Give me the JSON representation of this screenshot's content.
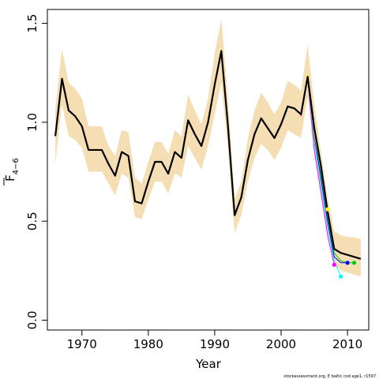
{
  "chart_data": {
    "type": "line",
    "xlabel": "Year",
    "ylabel": "F",
    "ylabel_subscript": "4−6",
    "credit": "stockassessment.org, E baltic cod age1, r1597",
    "xlim": [
      1964.8,
      2013.2
    ],
    "ylim": [
      -0.05,
      1.57
    ],
    "x_ticks": [
      1970,
      1980,
      1990,
      2000,
      2010
    ],
    "y_ticks": [
      0.0,
      0.5,
      1.0,
      1.5
    ],
    "y_tick_labels": [
      "0.0",
      "0.5",
      "1.0",
      "1.5"
    ],
    "colors": {
      "band": "#f5deb3",
      "main": "#000000",
      "retro": [
        "#ff00ff",
        "#0000ff",
        "#00ffff",
        "#00ff00",
        "#ffff00",
        "#00cd00"
      ]
    },
    "confidence_band": {
      "x": [
        1966,
        1967,
        1968,
        1969,
        1970,
        1971,
        1972,
        1973,
        1974,
        1975,
        1976,
        1977,
        1978,
        1979,
        1980,
        1981,
        1982,
        1983,
        1984,
        1985,
        1986,
        1987,
        1988,
        1989,
        1990,
        1991,
        1992,
        1993,
        1994,
        1995,
        1996,
        1997,
        1998,
        1999,
        2000,
        2001,
        2002,
        2003,
        2004,
        2005,
        2006,
        2007,
        2008,
        2009,
        2010,
        2011,
        2012
      ],
      "lower": [
        0.79,
        1.09,
        0.93,
        0.91,
        0.87,
        0.75,
        0.75,
        0.75,
        0.69,
        0.63,
        0.74,
        0.72,
        0.52,
        0.51,
        0.61,
        0.7,
        0.7,
        0.64,
        0.74,
        0.72,
        0.88,
        0.82,
        0.76,
        0.88,
        1.04,
        1.2,
        0.86,
        0.44,
        0.53,
        0.7,
        0.82,
        0.89,
        0.86,
        0.81,
        0.87,
        0.96,
        0.94,
        0.92,
        1.13,
        0.84,
        0.63,
        0.43,
        0.28,
        0.25,
        0.24,
        0.23,
        0.22
      ],
      "upper": [
        1.07,
        1.37,
        1.2,
        1.17,
        1.12,
        0.98,
        0.98,
        0.98,
        0.88,
        0.83,
        0.96,
        0.95,
        0.72,
        0.69,
        0.8,
        0.9,
        0.9,
        0.84,
        0.96,
        0.93,
        1.14,
        1.06,
        0.99,
        1.12,
        1.35,
        1.52,
        1.12,
        0.61,
        0.7,
        0.92,
        1.06,
        1.15,
        1.1,
        1.04,
        1.1,
        1.21,
        1.19,
        1.16,
        1.39,
        1.09,
        0.85,
        0.62,
        0.45,
        0.43,
        0.42,
        0.42,
        0.41
      ]
    },
    "series": [
      {
        "x": [
          1966,
          1967,
          1968,
          1969,
          1970,
          1971,
          1972,
          1973,
          1974,
          1975,
          1976,
          1977,
          1978,
          1979,
          1980,
          1981,
          1982,
          1983,
          1984,
          1985,
          1986,
          1987,
          1988,
          1989,
          1990,
          1991,
          1992,
          1993,
          1994,
          1995,
          1996,
          1997,
          1998,
          1999,
          2000,
          2001,
          2002,
          2003,
          2004,
          2005,
          2006,
          2007,
          2008,
          2009,
          2010,
          2011,
          2012
        ],
        "values": [
          0.93,
          1.22,
          1.06,
          1.03,
          0.98,
          0.86,
          0.86,
          0.86,
          0.79,
          0.73,
          0.85,
          0.83,
          0.6,
          0.59,
          0.7,
          0.8,
          0.8,
          0.74,
          0.85,
          0.82,
          1.01,
          0.94,
          0.88,
          1.0,
          1.19,
          1.36,
          0.98,
          0.53,
          0.62,
          0.81,
          0.94,
          1.02,
          0.97,
          0.92,
          0.99,
          1.08,
          1.07,
          1.04,
          1.23,
          0.97,
          0.78,
          0.55,
          0.36,
          0.34,
          0.33,
          0.32,
          0.31
        ],
        "color": "#000000"
      },
      {
        "x": [
          2003,
          2004,
          2005,
          2006,
          2007,
          2008
        ],
        "values": [
          1.03,
          1.22,
          0.86,
          0.65,
          0.43,
          0.28
        ],
        "color": "#ff00ff",
        "end_marker": true
      },
      {
        "x": [
          2003,
          2004,
          2005,
          2006,
          2007,
          2008,
          2009
        ],
        "values": [
          1.04,
          1.23,
          0.9,
          0.69,
          0.47,
          0.3,
          0.22
        ],
        "color": "#00ffff",
        "end_marker": true
      },
      {
        "x": [
          2003,
          2004,
          2005,
          2006,
          2007,
          2008,
          2009,
          2010
        ],
        "values": [
          1.04,
          1.23,
          0.93,
          0.72,
          0.5,
          0.32,
          0.29,
          0.29
        ],
        "color": "#0000ff",
        "end_marker": true
      },
      {
        "x": [
          2003,
          2004,
          2005,
          2006,
          2007,
          2008,
          2009,
          2010,
          2011
        ],
        "values": [
          1.04,
          1.23,
          0.95,
          0.75,
          0.53,
          0.34,
          0.3,
          0.29,
          0.29
        ],
        "color": "#00cd00",
        "end_marker": true
      },
      {
        "x": [
          2003,
          2004,
          2005,
          2006,
          2007
        ],
        "values": [
          1.05,
          1.24,
          0.94,
          0.76,
          0.56
        ],
        "color": "#ffff00",
        "end_marker": true
      }
    ]
  }
}
